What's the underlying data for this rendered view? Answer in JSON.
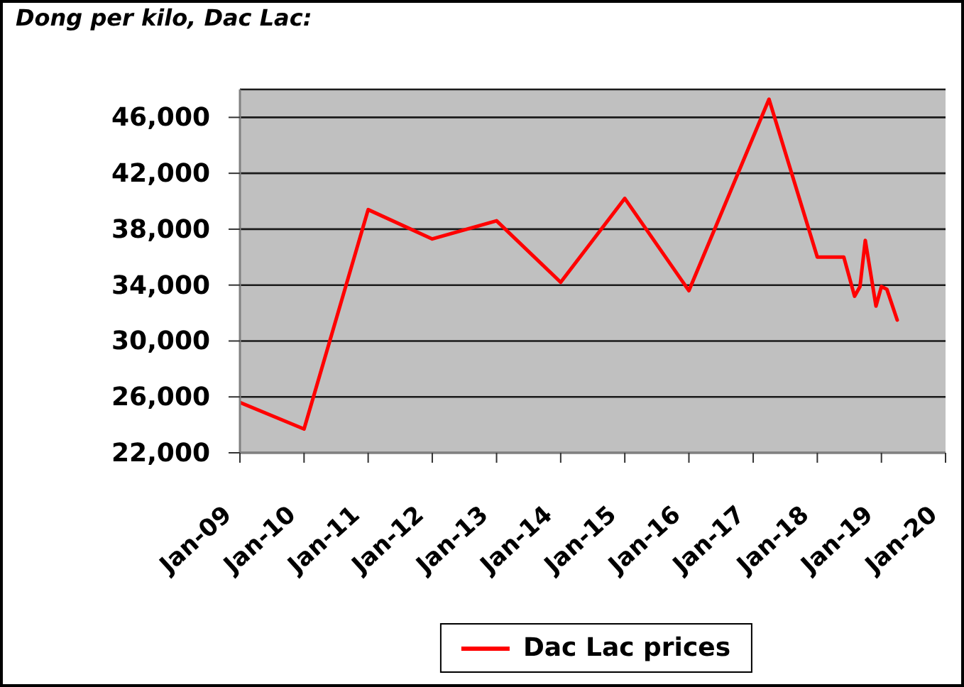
{
  "chart_data": {
    "type": "line",
    "title": "Dong per kilo, Dac Lac:",
    "x": [
      "2009-01",
      "2010-01",
      "2011-01",
      "2012-01",
      "2013-01",
      "2014-01",
      "2015-01",
      "2016-01",
      "2017-04",
      "2018-01",
      "2018-06",
      "2018-08",
      "2018-09",
      "2018-10",
      "2018-12",
      "2019-01",
      "2019-02",
      "2019-04"
    ],
    "series": [
      {
        "name": "Dac Lac prices",
        "color": "#ff0000",
        "values": [
          25600,
          23700,
          39400,
          37300,
          38600,
          34200,
          40200,
          33600,
          47300,
          36000,
          36000,
          33200,
          33900,
          37200,
          32500,
          33900,
          33700,
          31500
        ]
      }
    ],
    "xlim": [
      "2009-01",
      "2020-01"
    ],
    "xticks": [
      {
        "value": "2009-01",
        "label": "Jan-09"
      },
      {
        "value": "2010-01",
        "label": "Jan-10"
      },
      {
        "value": "2011-01",
        "label": "Jan-11"
      },
      {
        "value": "2012-01",
        "label": "Jan-12"
      },
      {
        "value": "2013-01",
        "label": "Jan-13"
      },
      {
        "value": "2014-01",
        "label": "Jan-14"
      },
      {
        "value": "2015-01",
        "label": "Jan-15"
      },
      {
        "value": "2016-01",
        "label": "Jan-16"
      },
      {
        "value": "2017-01",
        "label": "Jan-17"
      },
      {
        "value": "2018-01",
        "label": "Jan-18"
      },
      {
        "value": "2019-01",
        "label": "Jan-19"
      },
      {
        "value": "2020-01",
        "label": "Jan-20"
      }
    ],
    "ylim": [
      22000,
      48000
    ],
    "yticks": [
      {
        "value": 22000,
        "label": "22,000"
      },
      {
        "value": 26000,
        "label": "26,000"
      },
      {
        "value": 30000,
        "label": "30,000"
      },
      {
        "value": 34000,
        "label": "34,000"
      },
      {
        "value": 38000,
        "label": "38,000"
      },
      {
        "value": 42000,
        "label": "42,000"
      },
      {
        "value": 46000,
        "label": "46,000"
      }
    ],
    "grid": "y",
    "legend": "bottom",
    "marker": "none",
    "line_style": "solid"
  }
}
